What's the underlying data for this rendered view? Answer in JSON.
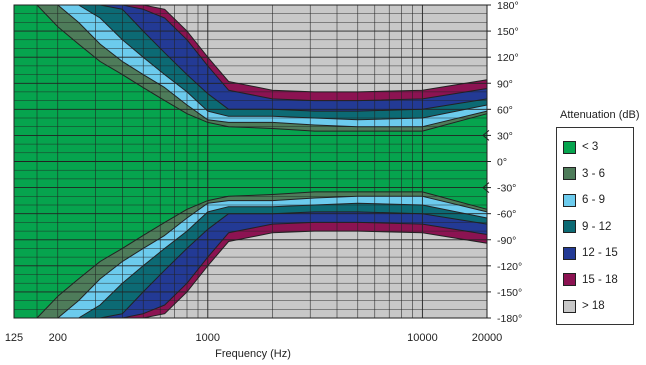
{
  "chart_data": {
    "type": "heatmap",
    "xlabel": "Frequency (Hz)",
    "ylabel": "",
    "x_scale": "log",
    "xlim": [
      125,
      20000
    ],
    "ylim": [
      -180,
      180
    ],
    "x_ticks": [
      125,
      200,
      1000,
      10000,
      20000
    ],
    "x_tick_labels": [
      "125",
      "200",
      "1000",
      "10000",
      "20000"
    ],
    "y_ticks": [
      180,
      150,
      120,
      90,
      60,
      30,
      0,
      -30,
      -60,
      -90,
      -120,
      -150,
      -180
    ],
    "y_tick_labels": [
      "180°",
      "150°",
      "120°",
      "90°",
      "60°",
      "30°",
      "0°",
      "-30°",
      "-60°",
      "-90°",
      "-120°",
      "-150°",
      "-180°"
    ],
    "grid": true,
    "legend_title": "Attenuation (dB)",
    "legend_position": "right",
    "levels": [
      {
        "label": "< 3",
        "color": "#06a44e"
      },
      {
        "label": "3 - 6",
        "color": "#4e7c5a"
      },
      {
        "label": "6 - 9",
        "color": "#6ccbed"
      },
      {
        "label": "9 - 12",
        "color": "#0c6a74"
      },
      {
        "label": "12 - 15",
        "color": "#233a95"
      },
      {
        "label": "15 - 18",
        "color": "#8c1352"
      },
      {
        "label": "> 18",
        "color": "#c8c8c8"
      }
    ],
    "contours": [
      {
        "level": "3 - 6",
        "frequency": [
          125,
          160,
          200,
          250,
          315,
          400,
          500,
          630,
          800,
          1000,
          1250,
          2000,
          3150,
          5000,
          10000,
          20000
        ],
        "angle": [
          180,
          180,
          155,
          135,
          115,
          100,
          85,
          70,
          55,
          45,
          40,
          38,
          35,
          35,
          35,
          55
        ]
      },
      {
        "level": "6 - 9",
        "frequency": [
          125,
          160,
          200,
          250,
          315,
          400,
          500,
          630,
          800,
          1000,
          1250,
          2000,
          3150,
          5000,
          10000,
          20000
        ],
        "angle": [
          180,
          180,
          180,
          160,
          135,
          115,
          100,
          85,
          65,
          48,
          45,
          45,
          42,
          40,
          40,
          58
        ]
      },
      {
        "level": "9 - 12",
        "frequency": [
          200,
          250,
          315,
          400,
          500,
          630,
          800,
          1000,
          1250,
          2000,
          3150,
          5000,
          10000,
          20000
        ],
        "angle": [
          180,
          180,
          165,
          140,
          120,
          100,
          80,
          58,
          52,
          52,
          50,
          48,
          50,
          65
        ]
      },
      {
        "level": "12 - 15",
        "frequency": [
          315,
          400,
          500,
          630,
          800,
          1000,
          1250,
          2000,
          3150,
          5000,
          10000,
          20000
        ],
        "angle": [
          180,
          175,
          150,
          125,
          100,
          78,
          60,
          60,
          58,
          58,
          60,
          72
        ]
      },
      {
        "level": "15 - 18",
        "frequency": [
          400,
          500,
          630,
          800,
          1000,
          1250,
          2000,
          3150,
          5000,
          10000,
          20000
        ],
        "angle": [
          180,
          175,
          165,
          140,
          110,
          82,
          72,
          70,
          70,
          72,
          84
        ]
      }
    ]
  }
}
